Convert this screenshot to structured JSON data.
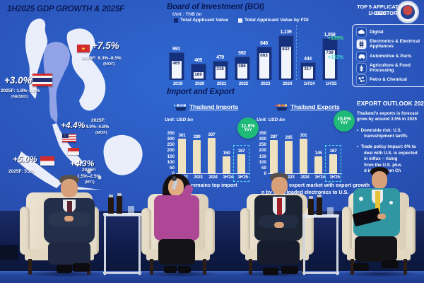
{
  "colors": {
    "screen_blue": "#2a53b8",
    "header_navy": "#0b1a56",
    "bar_navy": "#15307c",
    "bar_fdi_white": "#f3f5fc",
    "bar_cream": "#efe2c0",
    "badge_green": "#1fba77",
    "growth_green": "#45e28c",
    "growth_cyan": "#3cd8d8",
    "highlight_cyan": "#4fd8f0",
    "thailand_map_highlight": "#97a7e8",
    "magenta_jacket": "#ad4796",
    "teal_jacket": "#2f96a2",
    "yellow_tie": "#e6c436"
  },
  "screen": {
    "gdp_panel": {
      "title": "1H2025 GDP GROWTH & 2025F",
      "vietnam": {
        "flag": "vietnam-flag",
        "growth": "+7.5%",
        "forecast": "2025F: 8.3%–8.5%",
        "source": "(MOF)"
      },
      "thailand": {
        "flag": "thailand-flag",
        "growth": "+3.0%",
        "forecast": "2025F: 1.8%–2.3%",
        "source": "(NESDC)"
      },
      "malaysia": {
        "flag": "malaysia-flag",
        "growth": "+4.4%",
        "forecast_line1": "2025F:",
        "forecast_line2": "4.0%–4.8%",
        "source": "(MOF)"
      },
      "indonesia": {
        "flag": "indonesia-flag",
        "growth": "+5.0%",
        "forecast": "2025F: 5.2%"
      },
      "singapore": {
        "flag": "singapore-flag",
        "growth": "+4.3%",
        "forecast_line1": "2025F:",
        "forecast_line2": "1.5%–2.5%",
        "source": "(MTI)"
      }
    },
    "boi_panel": {
      "title": "Board of Investment (BOI)",
      "unit": "Unit : THB bn",
      "legend_total": "Total Applicant Value",
      "legend_fdi": "Total Applicant Value by FDI",
      "growth_total": "+139%",
      "growth_fdi": "+132%",
      "chart_data": {
        "type": "bar",
        "categories": [
          "2019",
          "2020",
          "2021",
          "2022",
          "2023",
          "2024",
          "1H'24",
          "1H'25"
        ],
        "series": [
          {
            "name": "Total Applicant Value",
            "values": [
              691,
              405,
              479,
              592,
              848,
              1139,
              444,
              1058
            ]
          },
          {
            "name": "Total Applicant Value by FDI",
            "values": [
              465,
              169,
              318,
              386,
              663,
              832,
              317,
              738
            ]
          }
        ],
        "ylabel": "THB bn"
      }
    },
    "top5_panel": {
      "title": "TOP 5 APPLICATION BY SECTOR",
      "subtitle": "1H2025",
      "items": [
        {
          "icon": "cloud-icon",
          "label": "Digital"
        },
        {
          "icon": "chip-icon",
          "label": "Electronics & Electrical Appliances"
        },
        {
          "icon": "car-icon",
          "label": "Automotive & Parts"
        },
        {
          "icon": "wheat-icon",
          "label": "Agriculture & Food Processing"
        },
        {
          "icon": "molecule-icon",
          "label": "Petro & Chemical"
        }
      ]
    },
    "trade_panel": {
      "title": "Import and Export",
      "y_ticks": [
        350,
        300,
        250,
        200,
        150,
        100,
        50,
        0
      ],
      "imports": {
        "header": "Thailand Imports",
        "icon": "import-ship-icon",
        "unit": "Unit: USD bn",
        "badge_value": "11.6%",
        "badge_caption": "YoY",
        "chart_data": {
          "type": "bar",
          "categories": [
            "2022",
            "2023",
            "2024",
            "1H'24",
            "1H'25"
          ],
          "values": [
            301,
            289,
            307,
            150,
            167
          ],
          "ylim": [
            0,
            350
          ]
        }
      },
      "exports": {
        "header": "Thailand Exports",
        "icon": "export-ship-icon",
        "unit": "Unit: USD bn",
        "badge_value": "15.0%",
        "badge_caption": "YoY",
        "chart_data": {
          "type": "bar",
          "categories": [
            "2022",
            "2023",
            "2024",
            "1H'24",
            "1H'25"
          ],
          "values": [
            287,
            285,
            301,
            145,
            167
          ],
          "ylim": [
            0,
            350
          ]
        }
      },
      "caption_line1a": "ina remains top import",
      "caption_line1b": "is top export market with export growth",
      "caption_line2": "n by front-loaded electronics to U.S."
    },
    "outlook_panel": {
      "title": "EXPORT OUTLOOK 2025",
      "intro_line1": "Thailand's exports is forecast",
      "intro_line2": "grow by around 3.5% in 2025",
      "bullet1_line1": "Downside risk: U.S.",
      "bullet1_line2": "transshipment tariffs",
      "bullet2_lines": [
        "Trade policy impact: 0% ta",
        "deal with U.S. is expected",
        "in influx – rising",
        "from the U.S. plus",
        "d inflows from Ch"
      ]
    }
  }
}
